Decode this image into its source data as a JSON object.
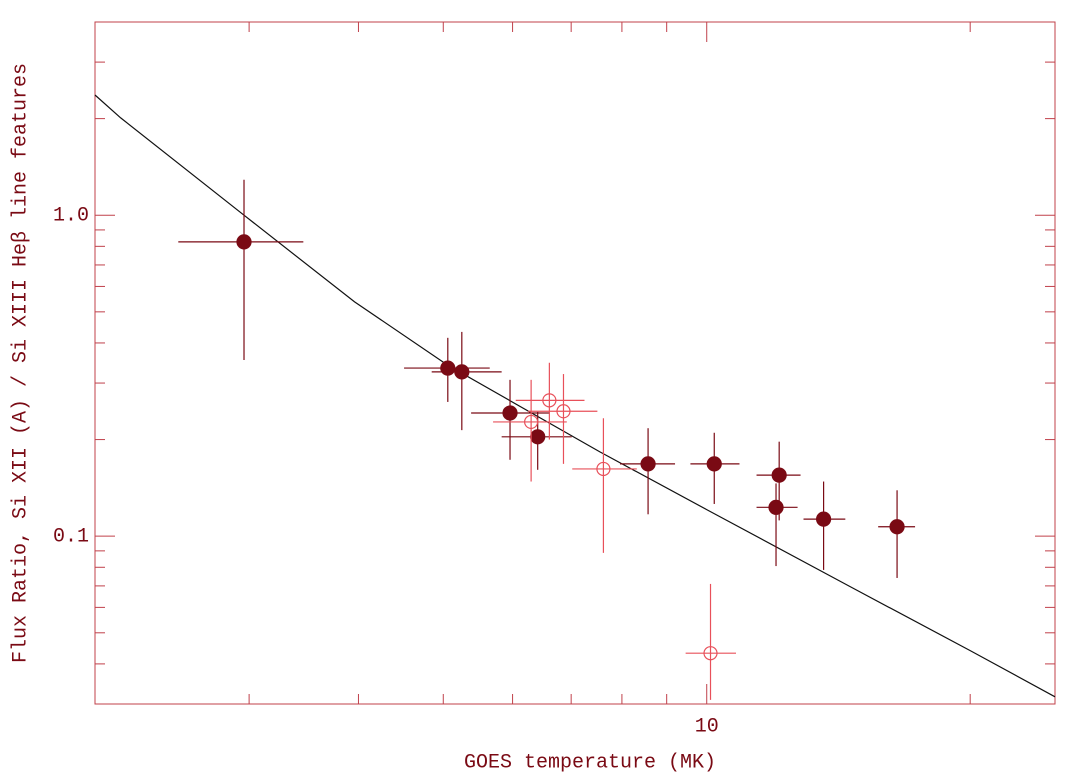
{
  "chart_data": {
    "type": "scatter",
    "x_label": "GOES temperature (MK)",
    "y_label": "Flux Ratio, Si XII (A) / Si XIII Heβ line features",
    "xscale": "log",
    "yscale": "log",
    "xlim": [
      2,
      25
    ],
    "ylim": [
      0.03,
      4
    ],
    "xticks": [
      10
    ],
    "yticks": [
      {
        "value": 1,
        "label": "1.0"
      },
      0.1
    ],
    "xminorticks": [
      2,
      3,
      4,
      5,
      6,
      7,
      8,
      9,
      20
    ],
    "yminorticks": [
      0.03,
      0.04,
      0.05,
      0.06,
      0.07,
      0.08,
      0.09,
      0.2,
      0.3,
      0.4,
      0.5,
      0.6,
      0.7,
      0.8,
      0.9,
      2,
      3
    ],
    "axis_color": "#c0404a",
    "series": [
      {
        "color": "#7a0a14",
        "marker": "filled",
        "x": [
          2.96,
          5.06,
          5.25,
          5.96,
          6.41,
          8.57,
          10.2,
          12.1,
          12.0,
          13.6,
          16.5
        ],
        "y": [
          0.826,
          0.334,
          0.325,
          0.242,
          0.204,
          0.168,
          0.168,
          0.155,
          0.123,
          0.113,
          0.107
        ],
        "xlow": [
          2.49,
          4.51,
          4.85,
          5.38,
          5.83,
          7.96,
          9.58,
          11.4,
          11.4,
          12.9,
          15.7
        ],
        "xhigh": [
          3.46,
          5.65,
          5.83,
          6.62,
          7.01,
          9.2,
          10.9,
          12.8,
          12.7,
          14.4,
          17.3
        ],
        "ylow": [
          0.354,
          0.262,
          0.214,
          0.173,
          0.161,
          0.117,
          0.126,
          0.112,
          0.0807,
          0.0785,
          0.0741
        ],
        "yhigh": [
          1.29,
          0.415,
          0.433,
          0.307,
          0.244,
          0.217,
          0.21,
          0.197,
          0.146,
          0.148,
          0.139
        ]
      },
      {
        "color": "#e8505a",
        "marker": "open",
        "x": [
          6.3,
          6.61,
          6.86,
          7.62,
          10.1
        ],
        "y": [
          0.227,
          0.265,
          0.245,
          0.162,
          0.0432
        ],
        "xlow": [
          5.7,
          6.05,
          6.25,
          7.02,
          9.46
        ],
        "xhigh": [
          6.92,
          7.25,
          7.5,
          8.32,
          10.8
        ],
        "ylow": [
          0.148,
          0.2,
          0.168,
          0.0887,
          0.0309
        ],
        "yhigh": [
          0.307,
          0.347,
          0.32,
          0.233,
          0.071
        ]
      }
    ],
    "curve": {
      "color": "#111111",
      "x": [
        2,
        2.14,
        2.96,
        3.96,
        5.06,
        7.55,
        10,
        14.6,
        20,
        25
      ],
      "y": [
        2.37,
        2.01,
        1.0,
        0.537,
        0.341,
        0.183,
        0.121,
        0.0695,
        0.044,
        0.0316
      ]
    }
  }
}
